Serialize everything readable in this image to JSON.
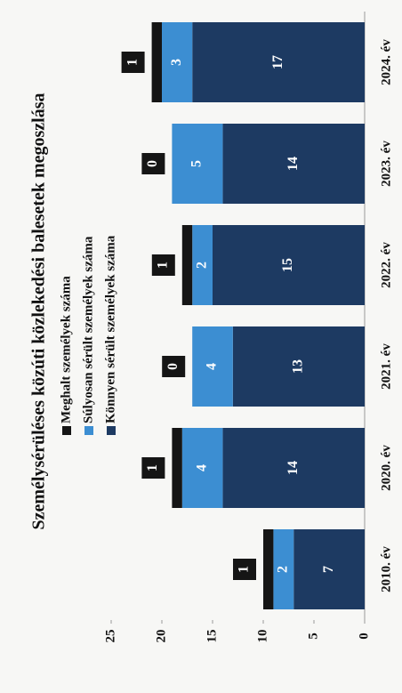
{
  "chart_data": {
    "type": "stacked_bar",
    "title": "Személysérüléses közúti közlekedési balesetek megoszlása",
    "categories": [
      "2010. év",
      "2020. év",
      "2021. év",
      "2022. év",
      "2023. év",
      "2024. év"
    ],
    "series": [
      {
        "name": "Könnyen sérült személyek száma",
        "color": "#1d3a62",
        "values": [
          7,
          14,
          13,
          15,
          14,
          17
        ]
      },
      {
        "name": "Súlyosan sérült személyek száma",
        "color": "#3c8ed2",
        "values": [
          2,
          4,
          4,
          2,
          5,
          3
        ]
      },
      {
        "name": "Meghalt személyek száma",
        "color": "#151515",
        "values": [
          1,
          1,
          0,
          1,
          0,
          1
        ]
      }
    ],
    "ylim": [
      0,
      25
    ],
    "yticks": [
      0,
      5,
      10,
      15,
      20,
      25
    ]
  }
}
